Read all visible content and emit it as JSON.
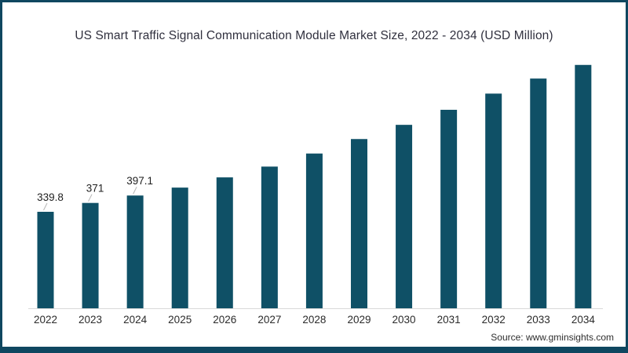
{
  "header": {
    "title": "US Smart Traffic Signal Communication Module Market Size, 2022 - 2034 (USD Million)"
  },
  "footer": {
    "source_text": "Source: www.gminsights.com"
  },
  "colors": {
    "bar": "#0f5066",
    "frame_border": "#0f4760",
    "axis_line": "#d9d9d9",
    "leader_line": "#b5b5b5",
    "title_text": "#30303e",
    "tick_text": "#2b2b2b",
    "value_text": "#1f1f1f",
    "source_text": "#2e2e2e",
    "background": "#ffffff"
  },
  "chart_data": {
    "type": "bar",
    "title": "US Smart Traffic Signal Communication Module Market Size, 2022 - 2034 (USD Million)",
    "categories": [
      "2022",
      "2023",
      "2024",
      "2025",
      "2026",
      "2027",
      "2028",
      "2029",
      "2030",
      "2031",
      "2032",
      "2033",
      "2034"
    ],
    "values": [
      339.8,
      371,
      397.1,
      425,
      461,
      499,
      545,
      596,
      646,
      699,
      756,
      809,
      857
    ],
    "bar_labels": [
      "339.8",
      "371",
      "397.1",
      "",
      "",
      "",
      "",
      "",
      "",
      "",
      "",
      "",
      ""
    ],
    "xlabel": "",
    "ylabel": "USD Million",
    "ylim": [
      0,
      950
    ],
    "grid": false,
    "legend": false,
    "y_axis_visible": false
  }
}
